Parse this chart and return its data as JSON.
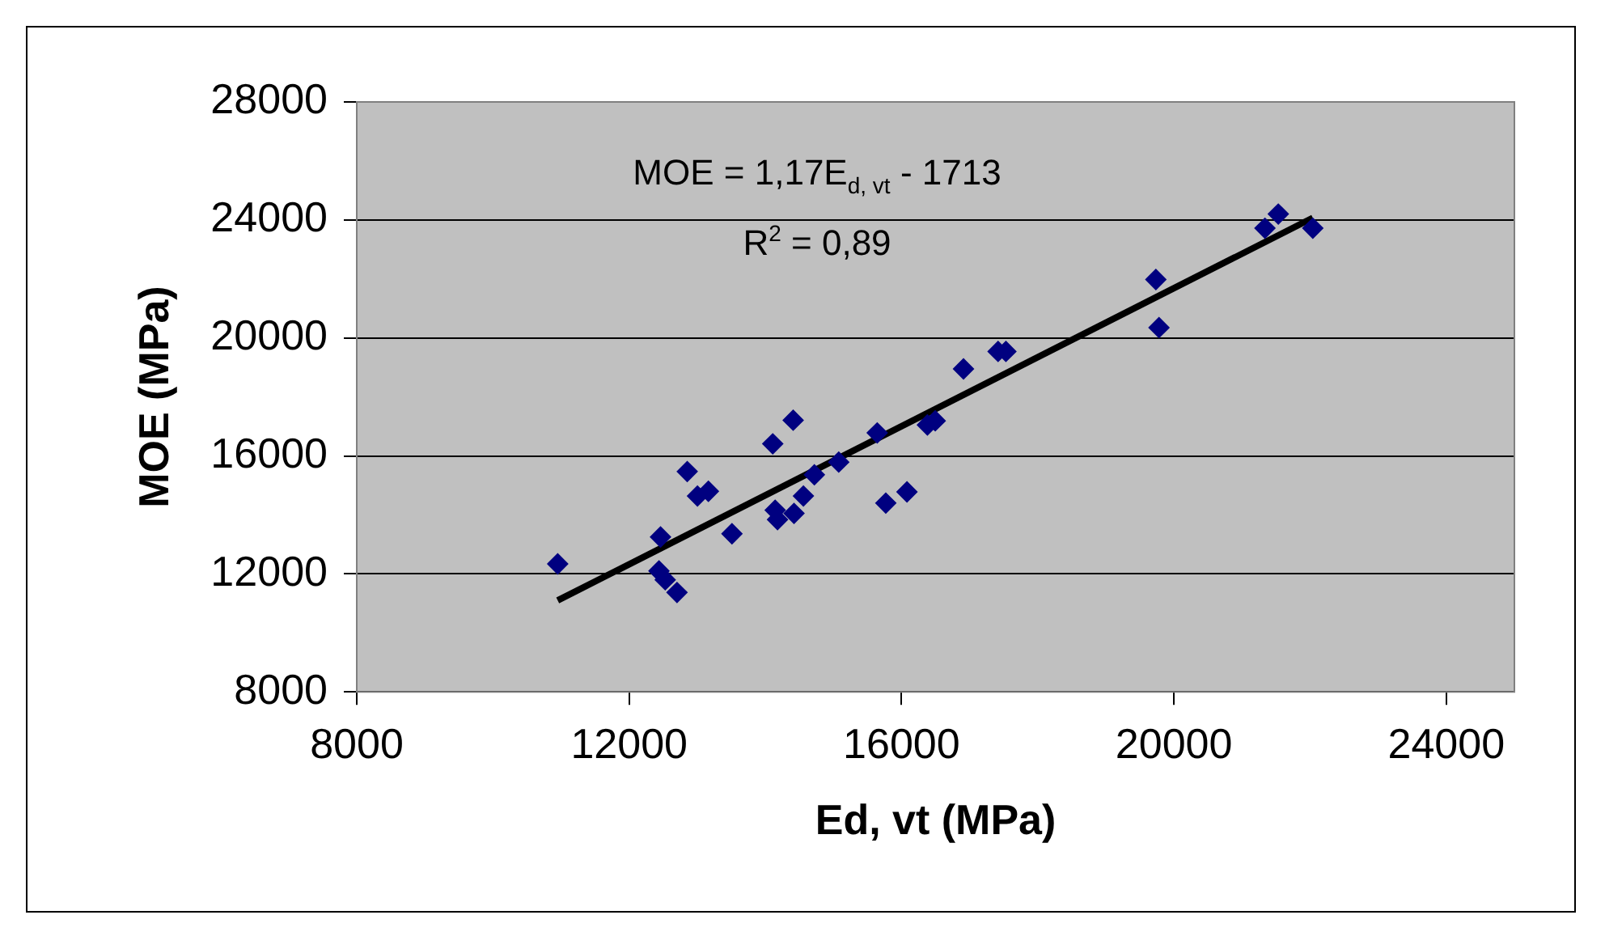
{
  "chart_data": {
    "type": "scatter",
    "xlabel": "Ed, vt (MPa)",
    "ylabel": "MOE (MPa)",
    "annotations": [
      "MOE = 1,17E$_{d, vt}$ - 1713",
      "R$^{2}$ = 0,89"
    ],
    "xlim": [
      8000,
      25000
    ],
    "xticks": [
      8000,
      12000,
      16000,
      20000,
      24000
    ],
    "ylim": [
      8000,
      28000
    ],
    "yticks": [
      8000,
      12000,
      16000,
      20000,
      24000,
      28000
    ],
    "grid": "y",
    "marker": "diamond",
    "series": [
      {
        "color": "#000080",
        "x": [
          10951,
          12461,
          12438,
          12530,
          12703,
          12853,
          13003,
          13164,
          13510,
          14109,
          14409,
          14144,
          14179,
          14421,
          14559,
          14720,
          15078,
          15643,
          15769,
          16080,
          16380,
          16495,
          16910,
          17418,
          17533,
          19735,
          19781,
          21337,
          21533,
          22040
        ],
        "values": [
          12340,
          13250,
          12100,
          11800,
          11370,
          15470,
          14640,
          14800,
          13360,
          16410,
          17210,
          14160,
          13840,
          14050,
          14640,
          15360,
          15790,
          16780,
          14400,
          14780,
          17050,
          17190,
          18950,
          19540,
          19540,
          21980,
          20350,
          23720,
          24200,
          23720
        ]
      },
      {
        "type": "line",
        "color": "#000000",
        "marker": "none",
        "x": [
          10951,
          22040
        ],
        "values": [
          11100,
          24070
        ]
      }
    ]
  }
}
